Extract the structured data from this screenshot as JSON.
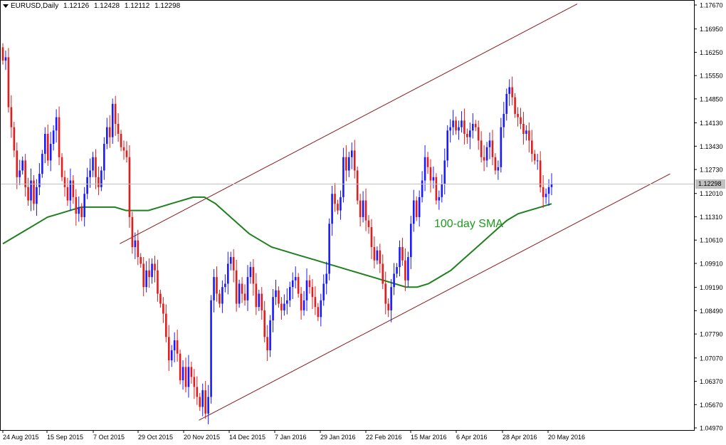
{
  "header": {
    "symbol": "EURUSD,Daily",
    "open": "1.12126",
    "high": "1.12428",
    "low": "1.12112",
    "close": "1.12298"
  },
  "current_price": "1.12298",
  "colors": {
    "bull": "#1a1aff",
    "bear": "#e11d1d",
    "sma": "#1e801e",
    "channel": "#8b1a1a",
    "axis": "#000000"
  },
  "chart_data": {
    "type": "candlestick",
    "title": "EURUSD,Daily",
    "ylim": [
      1.0497,
      1.1767
    ],
    "y_ticks": [
      "1.17670",
      "1.16950",
      "1.16250",
      "1.15550",
      "1.14850",
      "1.14130",
      "1.13430",
      "1.12730",
      "1.12010",
      "1.11310",
      "1.10610",
      "1.09910",
      "1.09190",
      "1.08490",
      "1.07790",
      "1.07070",
      "1.06370",
      "1.05670",
      "1.04970"
    ],
    "x_ticks": [
      "24 Aug 2015",
      "15 Sep 2015",
      "7 Oct 2015",
      "29 Oct 2015",
      "20 Nov 2015",
      "14 Dec 2015",
      "7 Jan 2016",
      "29 Jan 2016",
      "22 Feb 2016",
      "15 Mar 2016",
      "6 Apr 2016",
      "28 Apr 2016",
      "20 May 2016"
    ],
    "closes": [
      1.16,
      1.161,
      1.146,
      1.14,
      1.133,
      1.125,
      1.127,
      1.13,
      1.122,
      1.118,
      1.124,
      1.117,
      1.122,
      1.126,
      1.132,
      1.138,
      1.13,
      1.135,
      1.139,
      1.143,
      1.131,
      1.125,
      1.122,
      1.118,
      1.124,
      1.119,
      1.114,
      1.116,
      1.113,
      1.12,
      1.125,
      1.127,
      1.131,
      1.125,
      1.122,
      1.127,
      1.135,
      1.14,
      1.137,
      1.147,
      1.141,
      1.138,
      1.134,
      1.133,
      1.131,
      1.113,
      1.104,
      1.106,
      1.101,
      1.099,
      1.092,
      1.097,
      1.095,
      1.099,
      1.097,
      1.09,
      1.087,
      1.084,
      1.077,
      1.07,
      1.073,
      1.076,
      1.072,
      1.064,
      1.068,
      1.062,
      1.068,
      1.065,
      1.062,
      1.059,
      1.056,
      1.061,
      1.054,
      1.059,
      1.088,
      1.095,
      1.09,
      1.087,
      1.092,
      1.093,
      1.099,
      1.101,
      1.097,
      1.087,
      1.093,
      1.09,
      1.088,
      1.095,
      1.098,
      1.093,
      1.086,
      1.09,
      1.085,
      1.077,
      1.073,
      1.082,
      1.089,
      1.091,
      1.087,
      1.085,
      1.087,
      1.088,
      1.092,
      1.094,
      1.095,
      1.09,
      1.085,
      1.088,
      1.094,
      1.092,
      1.089,
      1.086,
      1.083,
      1.088,
      1.093,
      1.096,
      1.111,
      1.12,
      1.117,
      1.115,
      1.119,
      1.131,
      1.127,
      1.131,
      1.133,
      1.127,
      1.118,
      1.113,
      1.118,
      1.112,
      1.11,
      1.104,
      1.1,
      1.103,
      1.099,
      1.093,
      1.087,
      1.085,
      1.092,
      1.096,
      1.098,
      1.104,
      1.1,
      1.094,
      1.101,
      1.111,
      1.118,
      1.113,
      1.119,
      1.124,
      1.131,
      1.128,
      1.124,
      1.125,
      1.118,
      1.119,
      1.123,
      1.13,
      1.139,
      1.14,
      1.142,
      1.139,
      1.14,
      1.142,
      1.138,
      1.137,
      1.139,
      1.141,
      1.14,
      1.136,
      1.131,
      1.13,
      1.134,
      1.136,
      1.131,
      1.127,
      1.128,
      1.14,
      1.144,
      1.15,
      1.152,
      1.149,
      1.144,
      1.143,
      1.141,
      1.138,
      1.139,
      1.136,
      1.132,
      1.13,
      1.13,
      1.122,
      1.119,
      1.12,
      1.122,
      1.123
    ],
    "sma_label": "100-day SMA",
    "sma": [
      1.105,
      1.107,
      1.109,
      1.111,
      1.113,
      1.114,
      1.115,
      1.116,
      1.116,
      1.116,
      1.116,
      1.115,
      1.115,
      1.115,
      1.116,
      1.117,
      1.118,
      1.119,
      1.119,
      1.117,
      1.114,
      1.111,
      1.108,
      1.106,
      1.104,
      1.103,
      1.102,
      1.101,
      1.1,
      1.099,
      1.098,
      1.097,
      1.096,
      1.095,
      1.094,
      1.093,
      1.092,
      1.092,
      1.093,
      1.095,
      1.097,
      1.1,
      1.103,
      1.106,
      1.109,
      1.112,
      1.114,
      1.115,
      1.116,
      1.117
    ],
    "channel_upper": [
      {
        "x": 0.165,
        "y": 1.105
      },
      {
        "x": 0.795,
        "y": 1.177
      }
    ],
    "channel_lower": [
      {
        "x": 0.274,
        "y": 1.052
      },
      {
        "x": 0.923,
        "y": 1.126
      }
    ]
  }
}
